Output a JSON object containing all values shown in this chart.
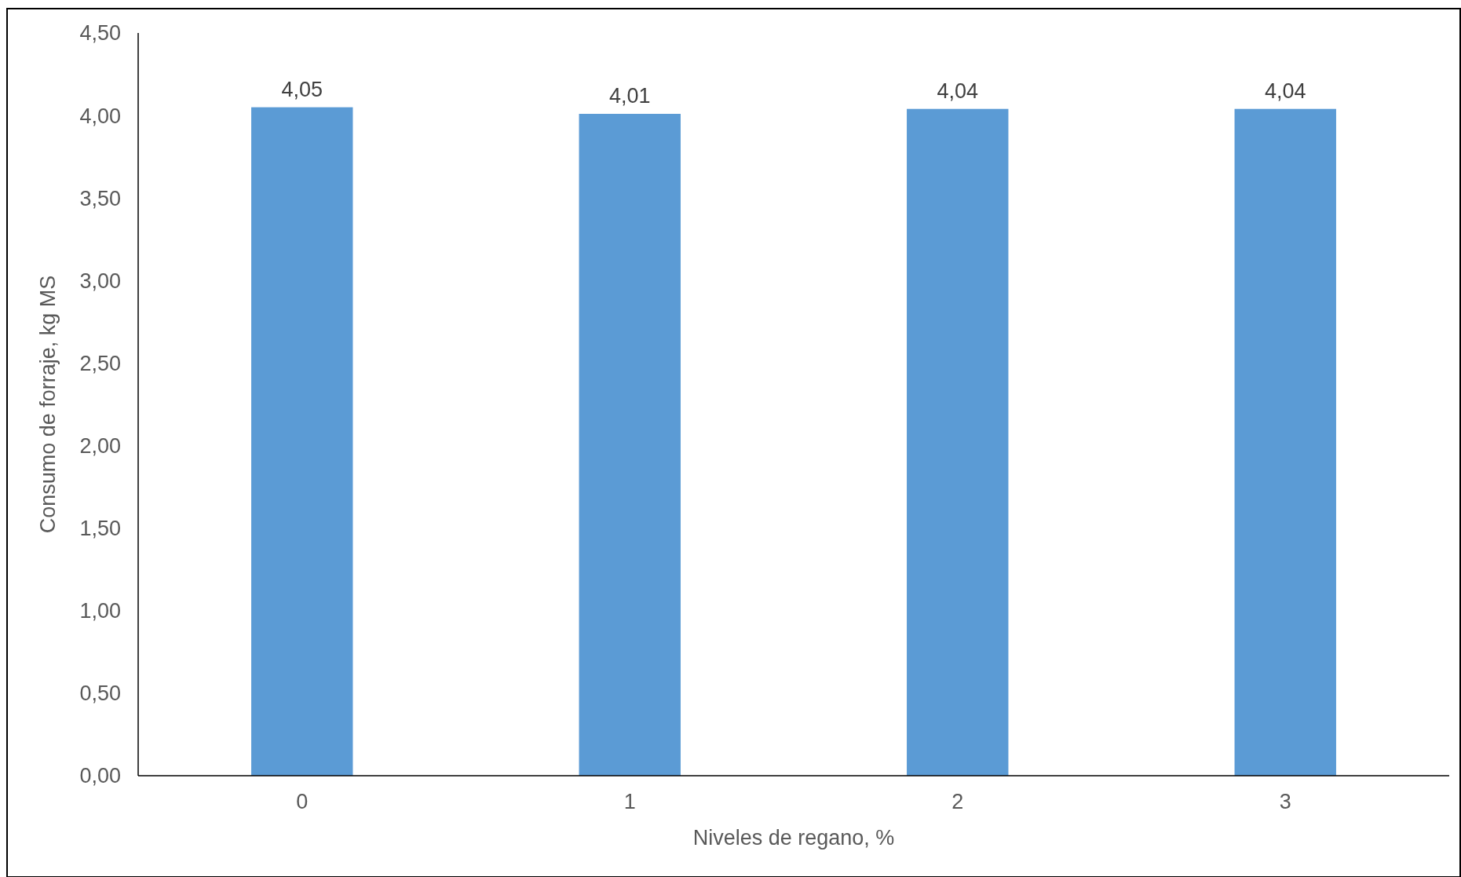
{
  "chart_data": {
    "type": "bar",
    "xlabel": "Niveles de regano, %",
    "ylabel": "Consumo de forraje, kg MS",
    "categories": [
      "0",
      "1",
      "2",
      "3"
    ],
    "values": [
      4.05,
      4.01,
      4.04,
      4.04
    ],
    "value_labels": [
      "4,05",
      "4,01",
      "4,04",
      "4,04"
    ],
    "color": "#5b9bd5",
    "ylim": [
      0,
      4.5
    ],
    "yticks": [
      {
        "value": 0,
        "label": "0,00"
      },
      {
        "value": 0.5,
        "label": "0,50"
      },
      {
        "value": 1,
        "label": "1,00"
      },
      {
        "value": 1.5,
        "label": "1,50"
      },
      {
        "value": 2,
        "label": "2,00"
      },
      {
        "value": 2.5,
        "label": "2,50"
      },
      {
        "value": 3,
        "label": "3,00"
      },
      {
        "value": 3.5,
        "label": "3,50"
      },
      {
        "value": 4,
        "label": "4,00"
      },
      {
        "value": 4.5,
        "label": "4,50"
      }
    ],
    "grid": false
  }
}
